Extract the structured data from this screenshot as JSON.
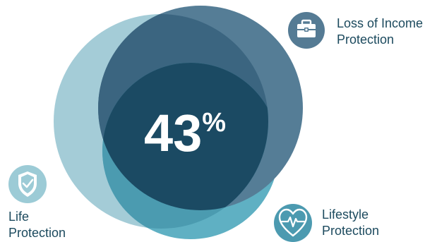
{
  "center_value": {
    "number": "43",
    "unit": "%"
  },
  "categories": [
    {
      "key": "loss_of_income",
      "line1": "Loss of Income",
      "line2": "Protection",
      "icon": "briefcase-icon",
      "color": "#557b94"
    },
    {
      "key": "life",
      "line1": "Life",
      "line2": "Protection",
      "icon": "shield-check-icon",
      "color": "#9ccbd6"
    },
    {
      "key": "lifestyle",
      "line1": "Lifestyle",
      "line2": "Protection",
      "icon": "heart-pulse-icon",
      "color": "#4c9ab0"
    }
  ],
  "colors": {
    "life_circle": "#a4ccd7",
    "income_circle": "#3d637d",
    "lifestyle_circle": "#4d9bb1",
    "overlap_center": "#1b4a63",
    "icon_circle": "#9ccbd6",
    "text": "#1c4a5e"
  }
}
